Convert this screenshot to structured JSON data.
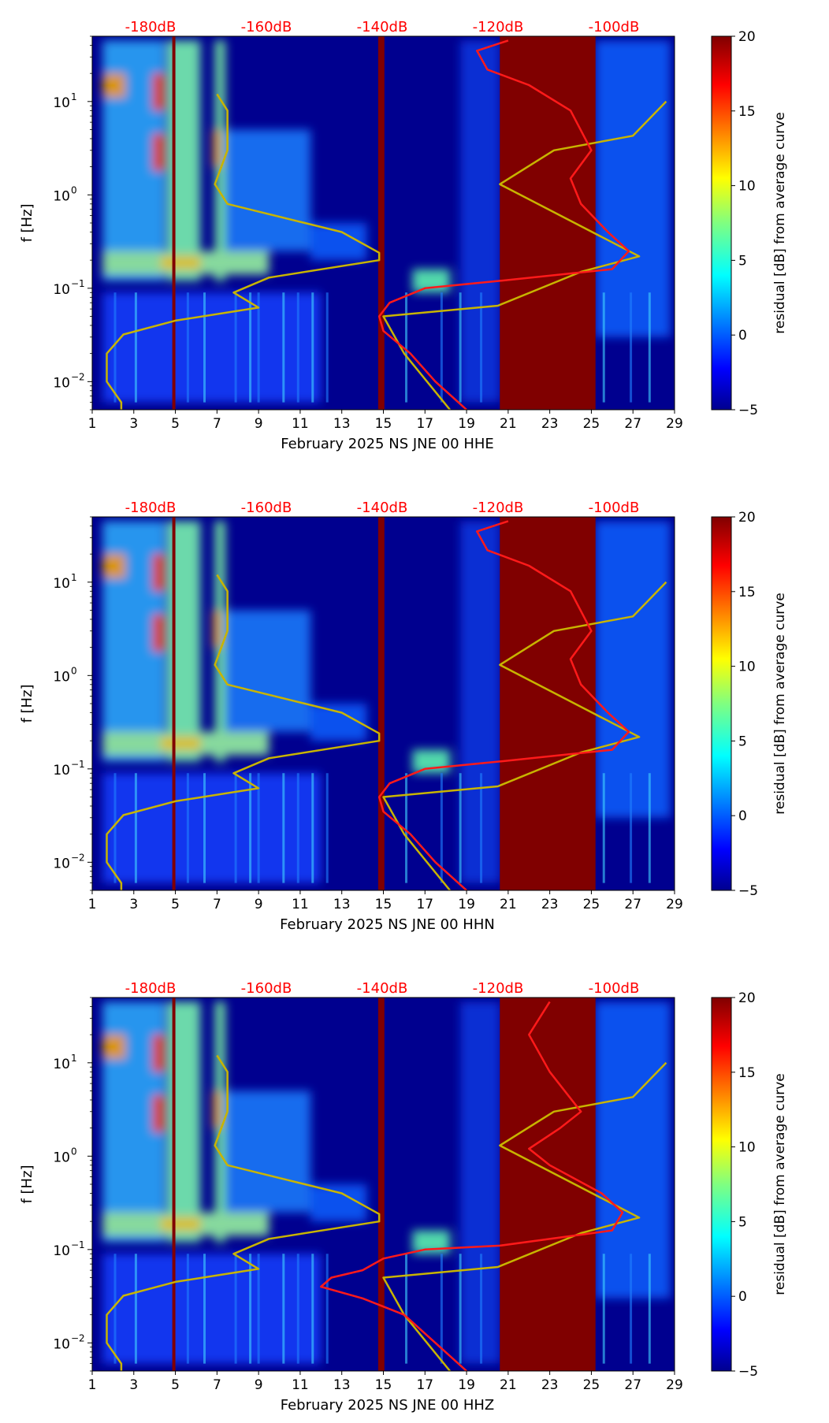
{
  "chart_data": [
    {
      "type": "heatmap",
      "xlabel": "February 2025 NS JNE 00 HHE",
      "ylabel": "f [Hz]",
      "x_ticks": [
        "1",
        "3",
        "5",
        "7",
        "9",
        "11",
        "13",
        "15",
        "17",
        "19",
        "21",
        "23",
        "25",
        "27",
        "29"
      ],
      "y_ticks": [
        {
          "label": "10",
          "exp": "−2"
        },
        {
          "label": "10",
          "exp": "−1"
        },
        {
          "label": "10",
          "exp": "0"
        },
        {
          "label": "10",
          "exp": "1"
        }
      ],
      "top_labels": [
        "-180dB",
        "-160dB",
        "-140dB",
        "-120dB",
        "-100dB"
      ],
      "colorbar_label": "residual [dB] from average curve",
      "colorbar_ticks": [
        "20",
        "15",
        "10",
        "5",
        "0",
        "−5"
      ],
      "colorbar_range": [
        -5,
        20
      ],
      "xlim": [
        1,
        29
      ],
      "ylim": [
        0.005,
        50
      ],
      "saturated_days": [
        [
          4.85,
          5.0
        ],
        [
          14.75,
          15.05
        ],
        [
          20.6,
          25.2
        ]
      ],
      "series": [
        {
          "name": "yellow",
          "color": "#c8b400",
          "points": [
            [
              2.4,
              0.005
            ],
            [
              2.4,
              0.006
            ],
            [
              1.7,
              0.01
            ],
            [
              1.7,
              0.014
            ],
            [
              1.7,
              0.02
            ],
            [
              2.5,
              0.032
            ],
            [
              5.0,
              0.045
            ],
            [
              9.0,
              0.062
            ],
            [
              7.8,
              0.09
            ],
            [
              9.5,
              0.13
            ],
            [
              14.8,
              0.2
            ],
            [
              14.8,
              0.24
            ],
            [
              13.0,
              0.4
            ],
            [
              7.5,
              0.8
            ],
            [
              6.9,
              1.3
            ],
            [
              7.5,
              3.0
            ],
            [
              7.5,
              8.0
            ],
            [
              7.0,
              12.0
            ]
          ]
        },
        {
          "name": "yellow-2",
          "color": "#c8b400",
          "points": [
            [
              18.2,
              0.005
            ],
            [
              16.0,
              0.02
            ],
            [
              15.0,
              0.05
            ],
            [
              20.5,
              0.065
            ],
            [
              24.5,
              0.15
            ],
            [
              27.3,
              0.22
            ],
            [
              20.6,
              1.3
            ],
            [
              23.2,
              3.0
            ],
            [
              27.0,
              4.3
            ],
            [
              28.6,
              10.0
            ]
          ]
        },
        {
          "name": "red",
          "color": "#ff1a1a",
          "points": [
            [
              19.0,
              0.005
            ],
            [
              17.5,
              0.01
            ],
            [
              16.3,
              0.02
            ],
            [
              15.0,
              0.035
            ],
            [
              14.8,
              0.05
            ],
            [
              15.3,
              0.07
            ],
            [
              17.0,
              0.1
            ],
            [
              20.6,
              0.12
            ],
            [
              26.0,
              0.16
            ],
            [
              26.8,
              0.25
            ],
            [
              25.8,
              0.4
            ],
            [
              24.5,
              0.8
            ],
            [
              24.0,
              1.5
            ],
            [
              25.0,
              3.0
            ],
            [
              24.0,
              8.0
            ],
            [
              22.0,
              15.0
            ],
            [
              20.0,
              22.0
            ],
            [
              19.5,
              35.0
            ],
            [
              21.0,
              45.0
            ]
          ]
        }
      ]
    },
    {
      "type": "heatmap",
      "xlabel": "February 2025 NS JNE 00 HHN",
      "ylabel": "f [Hz]",
      "x_ticks": [
        "1",
        "3",
        "5",
        "7",
        "9",
        "11",
        "13",
        "15",
        "17",
        "19",
        "21",
        "23",
        "25",
        "27",
        "29"
      ],
      "y_ticks": [
        {
          "label": "10",
          "exp": "−2"
        },
        {
          "label": "10",
          "exp": "−1"
        },
        {
          "label": "10",
          "exp": "0"
        },
        {
          "label": "10",
          "exp": "1"
        }
      ],
      "top_labels": [
        "-180dB",
        "-160dB",
        "-140dB",
        "-120dB",
        "-100dB"
      ],
      "colorbar_label": "residual [dB] from average curve",
      "colorbar_ticks": [
        "20",
        "15",
        "10",
        "5",
        "0",
        "−5"
      ],
      "colorbar_range": [
        -5,
        20
      ],
      "xlim": [
        1,
        29
      ],
      "ylim": [
        0.005,
        50
      ],
      "saturated_days": [
        [
          4.85,
          5.0
        ],
        [
          14.75,
          15.05
        ],
        [
          20.6,
          25.2
        ]
      ],
      "series": [
        {
          "name": "yellow",
          "color": "#c8b400",
          "points": [
            [
              2.4,
              0.005
            ],
            [
              2.4,
              0.006
            ],
            [
              1.7,
              0.01
            ],
            [
              1.7,
              0.014
            ],
            [
              1.7,
              0.02
            ],
            [
              2.5,
              0.032
            ],
            [
              5.0,
              0.045
            ],
            [
              9.0,
              0.062
            ],
            [
              7.8,
              0.09
            ],
            [
              9.5,
              0.13
            ],
            [
              14.8,
              0.2
            ],
            [
              14.8,
              0.24
            ],
            [
              13.0,
              0.4
            ],
            [
              7.5,
              0.8
            ],
            [
              6.9,
              1.3
            ],
            [
              7.5,
              3.0
            ],
            [
              7.5,
              8.0
            ],
            [
              7.0,
              12.0
            ]
          ]
        },
        {
          "name": "yellow-2",
          "color": "#c8b400",
          "points": [
            [
              18.2,
              0.005
            ],
            [
              16.0,
              0.02
            ],
            [
              15.0,
              0.05
            ],
            [
              20.5,
              0.065
            ],
            [
              24.5,
              0.15
            ],
            [
              27.3,
              0.22
            ],
            [
              20.6,
              1.3
            ],
            [
              23.2,
              3.0
            ],
            [
              27.0,
              4.3
            ],
            [
              28.6,
              10.0
            ]
          ]
        },
        {
          "name": "red",
          "color": "#ff1a1a",
          "points": [
            [
              19.0,
              0.005
            ],
            [
              17.5,
              0.01
            ],
            [
              16.3,
              0.02
            ],
            [
              15.0,
              0.035
            ],
            [
              14.8,
              0.05
            ],
            [
              15.3,
              0.07
            ],
            [
              17.0,
              0.1
            ],
            [
              20.6,
              0.12
            ],
            [
              26.0,
              0.16
            ],
            [
              26.8,
              0.25
            ],
            [
              25.8,
              0.4
            ],
            [
              24.5,
              0.8
            ],
            [
              24.0,
              1.5
            ],
            [
              25.0,
              3.0
            ],
            [
              24.0,
              8.0
            ],
            [
              22.0,
              15.0
            ],
            [
              20.0,
              22.0
            ],
            [
              19.5,
              35.0
            ],
            [
              21.0,
              45.0
            ]
          ]
        }
      ]
    },
    {
      "type": "heatmap",
      "xlabel": "February 2025 NS JNE 00 HHZ",
      "ylabel": "f [Hz]",
      "x_ticks": [
        "1",
        "3",
        "5",
        "7",
        "9",
        "11",
        "13",
        "15",
        "17",
        "19",
        "21",
        "23",
        "25",
        "27",
        "29"
      ],
      "y_ticks": [
        {
          "label": "10",
          "exp": "−2"
        },
        {
          "label": "10",
          "exp": "−1"
        },
        {
          "label": "10",
          "exp": "0"
        },
        {
          "label": "10",
          "exp": "1"
        }
      ],
      "top_labels": [
        "-180dB",
        "-160dB",
        "-140dB",
        "-120dB",
        "-100dB"
      ],
      "colorbar_label": "residual [dB] from average curve",
      "colorbar_ticks": [
        "20",
        "15",
        "10",
        "5",
        "0",
        "−5"
      ],
      "colorbar_range": [
        -5,
        20
      ],
      "xlim": [
        1,
        29
      ],
      "ylim": [
        0.005,
        50
      ],
      "saturated_days": [
        [
          4.85,
          5.0
        ],
        [
          14.75,
          15.05
        ],
        [
          20.6,
          25.2
        ]
      ],
      "series": [
        {
          "name": "yellow",
          "color": "#c8b400",
          "points": [
            [
              2.4,
              0.005
            ],
            [
              2.4,
              0.006
            ],
            [
              1.7,
              0.01
            ],
            [
              1.7,
              0.014
            ],
            [
              1.7,
              0.02
            ],
            [
              2.5,
              0.032
            ],
            [
              5.0,
              0.045
            ],
            [
              9.0,
              0.062
            ],
            [
              7.8,
              0.09
            ],
            [
              9.5,
              0.13
            ],
            [
              14.8,
              0.2
            ],
            [
              14.8,
              0.24
            ],
            [
              13.0,
              0.4
            ],
            [
              7.5,
              0.8
            ],
            [
              6.9,
              1.3
            ],
            [
              7.5,
              3.0
            ],
            [
              7.5,
              8.0
            ],
            [
              7.0,
              12.0
            ]
          ]
        },
        {
          "name": "yellow-2",
          "color": "#c8b400",
          "points": [
            [
              18.2,
              0.005
            ],
            [
              16.0,
              0.02
            ],
            [
              15.0,
              0.05
            ],
            [
              20.5,
              0.065
            ],
            [
              24.5,
              0.15
            ],
            [
              27.3,
              0.22
            ],
            [
              20.6,
              1.3
            ],
            [
              23.2,
              3.0
            ],
            [
              27.0,
              4.3
            ],
            [
              28.6,
              10.0
            ]
          ]
        },
        {
          "name": "red",
          "color": "#ff1a1a",
          "points": [
            [
              19.0,
              0.005
            ],
            [
              17.5,
              0.01
            ],
            [
              16.0,
              0.02
            ],
            [
              14.0,
              0.03
            ],
            [
              12.0,
              0.04
            ],
            [
              12.5,
              0.05
            ],
            [
              14.0,
              0.06
            ],
            [
              15.0,
              0.08
            ],
            [
              17.0,
              0.1
            ],
            [
              20.6,
              0.11
            ],
            [
              26.0,
              0.16
            ],
            [
              26.5,
              0.25
            ],
            [
              25.5,
              0.4
            ],
            [
              23.0,
              0.8
            ],
            [
              22.0,
              1.2
            ],
            [
              23.5,
              2.0
            ],
            [
              24.5,
              3.0
            ],
            [
              23.0,
              8.0
            ],
            [
              22.0,
              20.0
            ],
            [
              23.0,
              45.0
            ]
          ]
        }
      ]
    }
  ]
}
